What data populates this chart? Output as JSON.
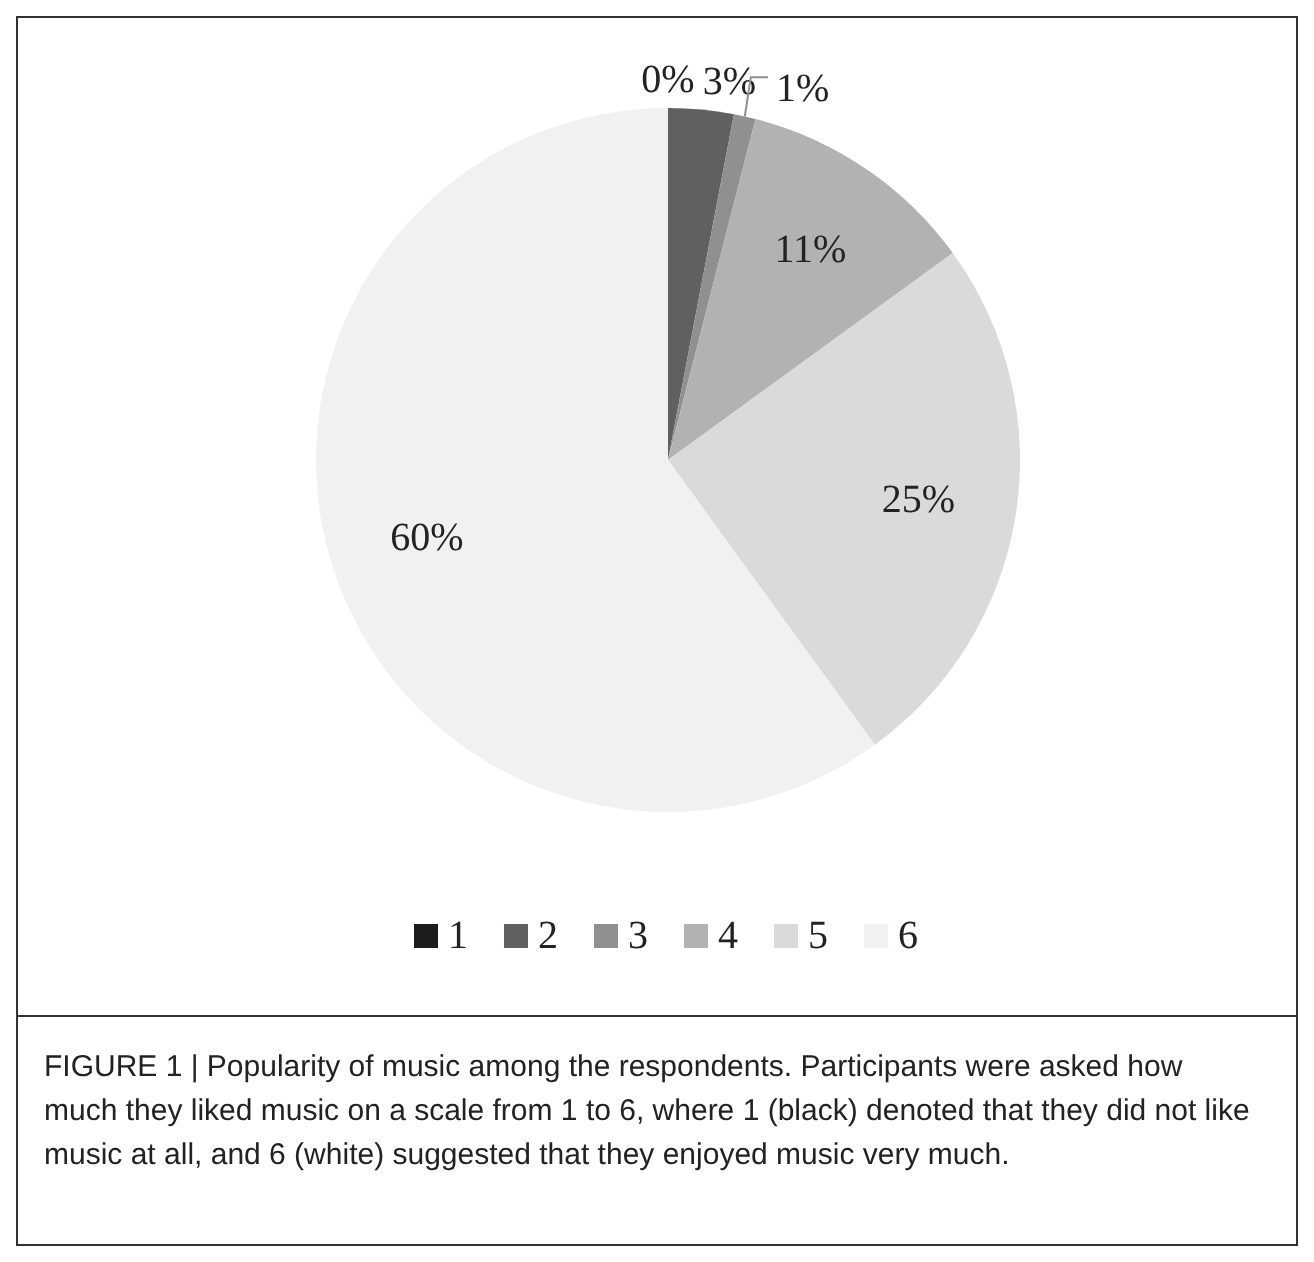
{
  "chart_data": {
    "type": "pie",
    "categories": [
      "1",
      "2",
      "3",
      "4",
      "5",
      "6"
    ],
    "values": [
      0,
      3,
      1,
      11,
      25,
      60
    ],
    "colors": [
      "#1c1c1c",
      "#5f6062",
      "#8e9092",
      "#b1b2b4",
      "#d9dadb",
      "#f0f1f2"
    ],
    "value_labels": [
      "0%",
      "3%",
      "1%",
      "11%",
      "25%",
      "60%"
    ],
    "legend": "bottom",
    "annotations": [
      "FIGURE 1 | Popularity of music among the respondents. Participants were asked how much they liked music on a scale from 1 to 6, where 1 (black) denoted that they did not like music at all, and 6 (white) suggested that they enjoyed music very much."
    ]
  }
}
